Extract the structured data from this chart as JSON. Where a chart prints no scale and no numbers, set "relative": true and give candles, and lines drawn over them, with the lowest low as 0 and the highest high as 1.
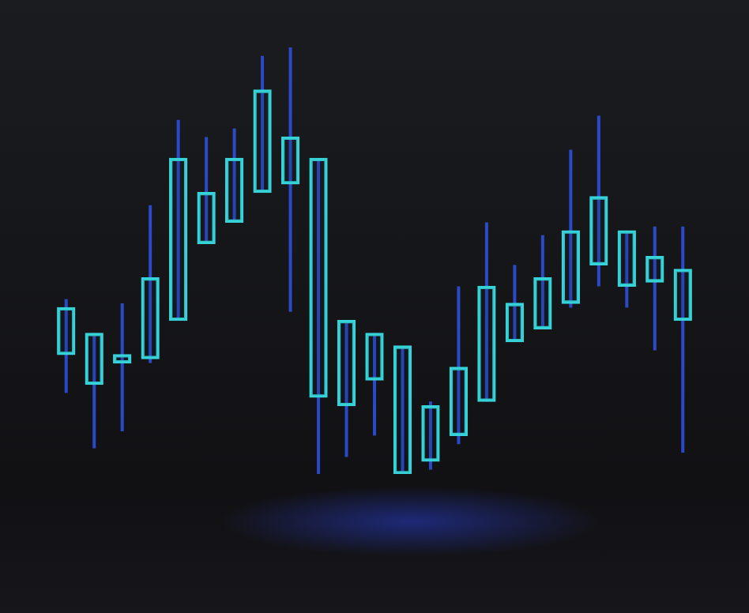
{
  "chart_data": {
    "type": "candlestick",
    "relative": true,
    "color": "#36d3d8",
    "categories": [
      null,
      null,
      null,
      null,
      null,
      null,
      null,
      null,
      null,
      null,
      null,
      null,
      null,
      null,
      null,
      null,
      null,
      null,
      null,
      null,
      null,
      null,
      null
    ],
    "ohlc": [
      [
        0.28,
        0.41,
        0.19,
        0.39
      ],
      [
        0.21,
        0.33,
        0.06,
        0.33
      ],
      [
        0.26,
        0.4,
        0.1,
        0.28
      ],
      [
        0.27,
        0.63,
        0.26,
        0.46
      ],
      [
        0.36,
        0.83,
        0.36,
        0.74
      ],
      [
        0.54,
        0.79,
        0.54,
        0.66
      ],
      [
        0.59,
        0.81,
        0.59,
        0.74
      ],
      [
        0.66,
        0.98,
        0.66,
        0.9
      ],
      [
        0.68,
        1.0,
        0.38,
        0.79
      ],
      [
        0.18,
        0.74,
        0.0,
        0.74
      ],
      [
        0.16,
        0.36,
        0.04,
        0.36
      ],
      [
        0.22,
        0.33,
        0.09,
        0.33
      ],
      [
        0.0,
        0.3,
        0.0,
        0.3
      ],
      [
        0.03,
        0.17,
        0.01,
        0.16
      ],
      [
        0.09,
        0.44,
        0.07,
        0.25
      ],
      [
        0.17,
        0.59,
        0.17,
        0.44
      ],
      [
        0.31,
        0.49,
        0.31,
        0.4
      ],
      [
        0.34,
        0.56,
        0.34,
        0.46
      ],
      [
        0.4,
        0.76,
        0.39,
        0.57
      ],
      [
        0.49,
        0.84,
        0.44,
        0.65
      ],
      [
        0.44,
        0.57,
        0.39,
        0.57
      ],
      [
        0.45,
        0.58,
        0.29,
        0.51
      ],
      [
        0.36,
        0.58,
        0.05,
        0.48
      ]
    ]
  }
}
